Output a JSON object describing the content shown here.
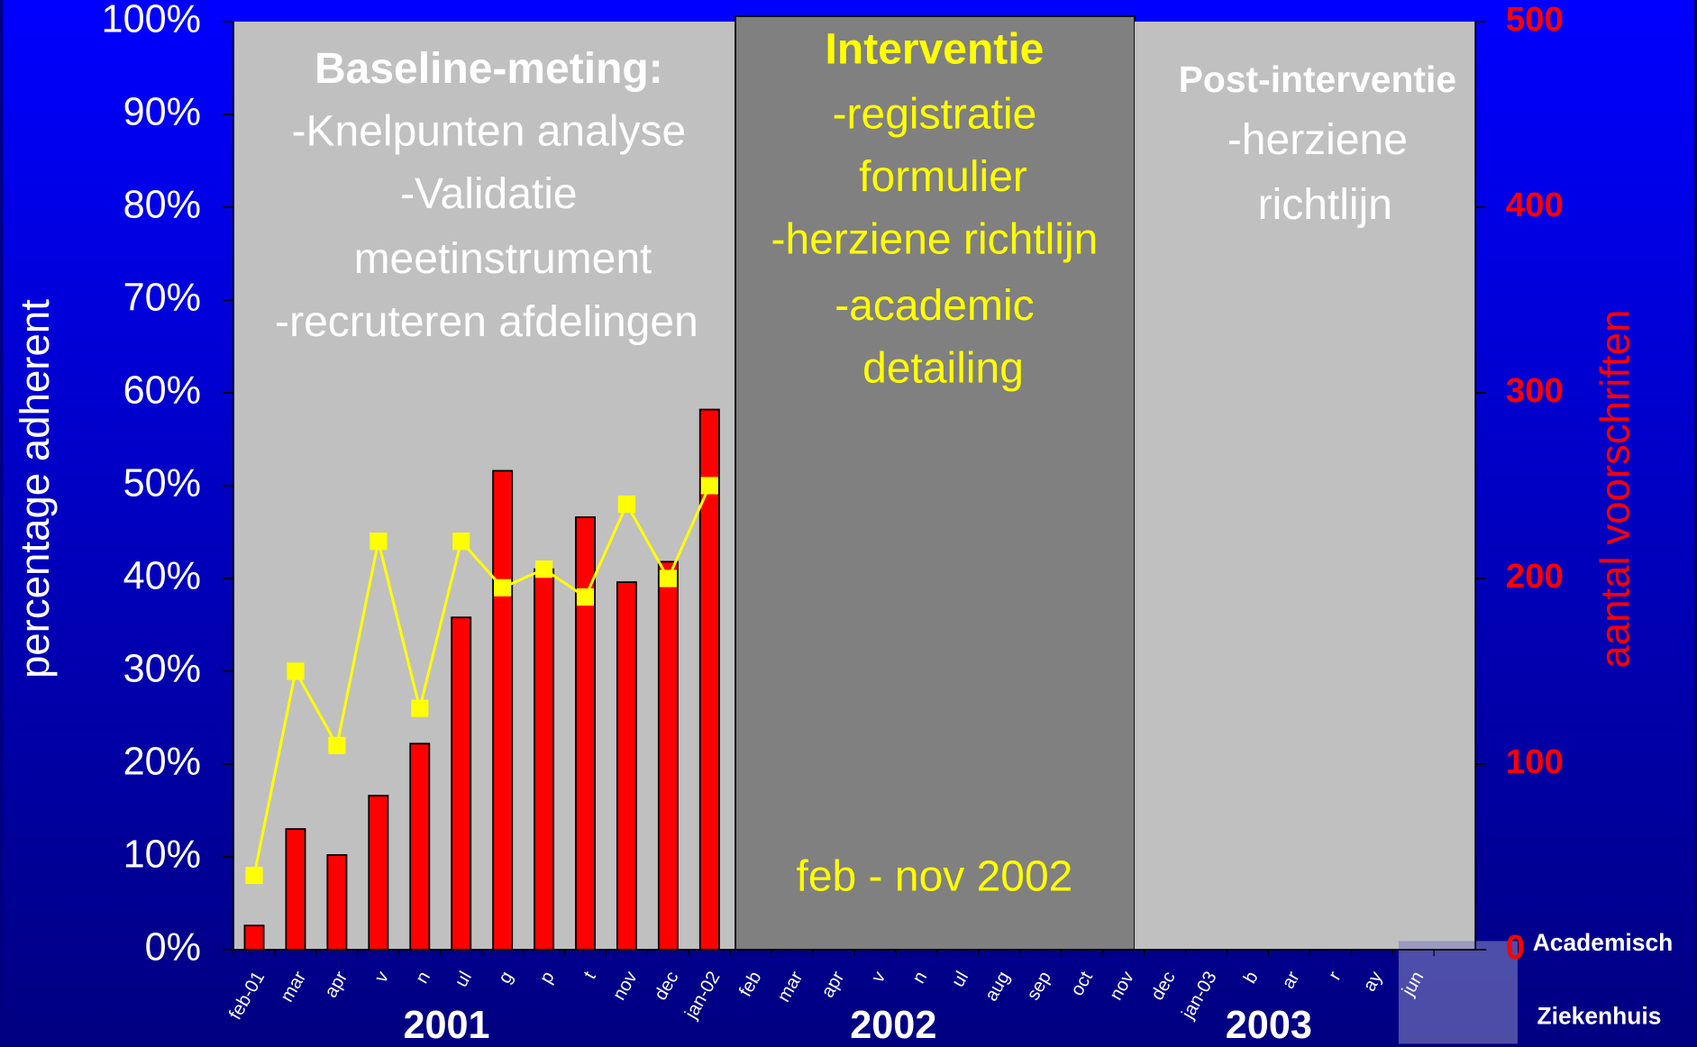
{
  "chart_data": {
    "type": "bar-line",
    "categories": [
      "feb-01",
      "mar",
      "apr",
      "v",
      "n",
      "ul",
      "g",
      "p",
      "t",
      "nov",
      "dec",
      "jan-02",
      "feb",
      "mar",
      "apr",
      "v",
      "n",
      "ul",
      "aug",
      "sep",
      "oct",
      "nov",
      "dec",
      "jan-03",
      "b",
      "ar",
      "r",
      "ay",
      "jun",
      null
    ],
    "series": [
      {
        "type": "bar",
        "axis": "y2",
        "color": "#ff0000",
        "values": [
          13,
          65,
          51,
          83,
          111,
          179,
          258,
          205,
          233,
          198,
          209,
          291,
          null,
          null,
          null,
          null,
          null,
          null,
          null,
          null,
          null,
          null,
          null,
          null,
          null,
          null,
          null,
          null,
          null,
          null
        ]
      },
      {
        "type": "line",
        "axis": "y",
        "color": "#ffff00",
        "values": [
          8,
          30,
          22,
          44,
          26,
          44,
          39,
          41,
          38,
          48,
          40,
          50,
          null,
          null,
          null,
          null,
          null,
          null,
          null,
          null,
          null,
          null,
          null,
          null,
          null,
          null,
          null,
          null,
          null,
          null
        ]
      }
    ],
    "ylim": [
      0,
      100
    ],
    "yticks": [
      {
        "value": 0,
        "label": "0%"
      },
      {
        "value": 10,
        "label": "10%"
      },
      {
        "value": 20,
        "label": "20%"
      },
      {
        "value": 30,
        "label": "30%"
      },
      {
        "value": 40,
        "label": "40%"
      },
      {
        "value": 50,
        "label": "50%"
      },
      {
        "value": 60,
        "label": "60%"
      },
      {
        "value": 70,
        "label": "70%"
      },
      {
        "value": 80,
        "label": "80%"
      },
      {
        "value": 90,
        "label": "90%"
      },
      {
        "value": 100,
        "label": "100%"
      }
    ],
    "y2lim": [
      0,
      500
    ],
    "y2ticks": [
      0,
      100,
      200,
      300,
      400,
      500
    ],
    "ylabel": "percentage adherent",
    "y2label": "aantal voorschriften",
    "years": [
      "2001",
      "2002",
      "2003"
    ],
    "phases": [
      {
        "title": "Baseline-meting:",
        "lines": [
          "-Knelpunten analyse",
          "-Validatie",
          "meetinstrument",
          "-recruteren afdelingen"
        ]
      },
      {
        "title": "Interventie",
        "lines": [
          "-registratie",
          "formulier",
          "-herziene richtlijn",
          "-academic",
          "detailing"
        ],
        "period": "feb - nov 2002"
      },
      {
        "title": "Post-interventie",
        "lines": [
          "-herziene",
          "richtlijn"
        ]
      }
    ],
    "logo": [
      "Academisch",
      "Ziekenhuis"
    ]
  }
}
